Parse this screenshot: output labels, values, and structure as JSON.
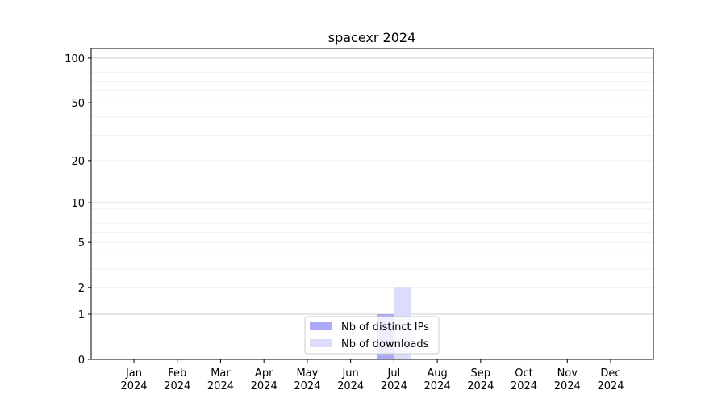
{
  "chart_data": {
    "type": "bar",
    "title": "spacexr 2024",
    "xlabel": "",
    "ylabel": "",
    "y_scale": "log(1+y)",
    "ylim": [
      0,
      116
    ],
    "grid": "horizontal major and minor",
    "legend_position": "lower center",
    "categories": [
      "Jan\n2024",
      "Feb\n2024",
      "Mar\n2024",
      "Apr\n2024",
      "May\n2024",
      "Jun\n2024",
      "Jul\n2024",
      "Aug\n2024",
      "Sep\n2024",
      "Oct\n2024",
      "Nov\n2024",
      "Dec\n2024"
    ],
    "y_ticks": [
      0,
      1,
      2,
      5,
      10,
      20,
      50,
      100
    ],
    "y_tick_labels": [
      "0",
      "1",
      "2",
      "5",
      "10",
      "20",
      "50",
      "100"
    ],
    "series": [
      {
        "name": "Nb of distinct IPs",
        "color": "#aaaaf6",
        "values": [
          0,
          0,
          0,
          0,
          0,
          0,
          1,
          0,
          0,
          0,
          0,
          0
        ]
      },
      {
        "name": "Nb of downloads",
        "color": "#dcdcfb",
        "values": [
          0,
          0,
          0,
          0,
          0,
          0,
          2,
          0,
          0,
          0,
          0,
          0
        ]
      }
    ]
  }
}
